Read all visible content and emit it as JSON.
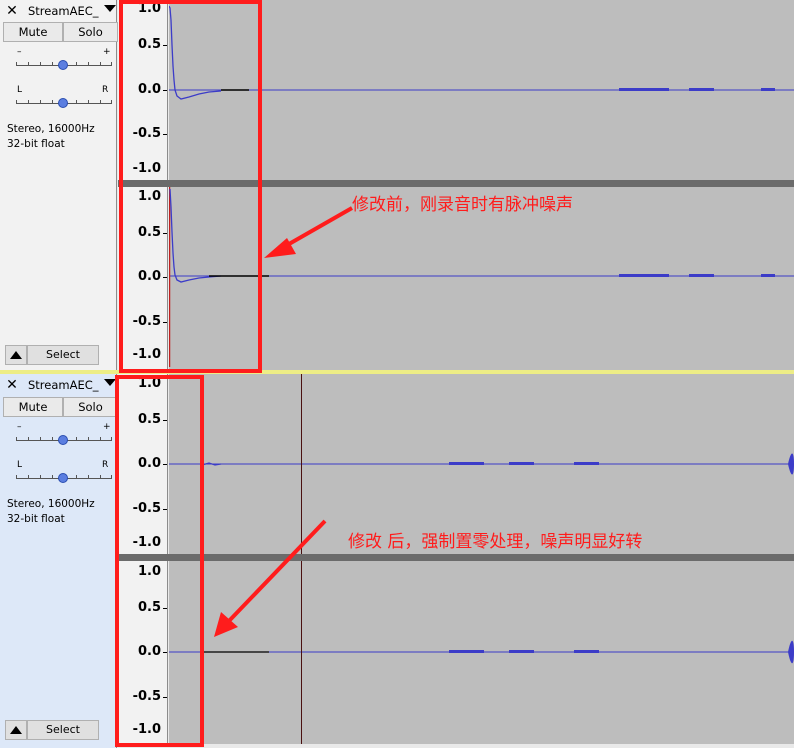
{
  "tracks": [
    {
      "name": "StreamAEC_",
      "mute_label": "Mute",
      "solo_label": "Solo",
      "gain_minus": "–",
      "gain_plus": "+",
      "pan_left": "L",
      "pan_right": "R",
      "info_rate": "Stereo, 16000Hz",
      "info_format": "32-bit float",
      "select_label": "Select",
      "ruler_labels": [
        "1.0",
        "0.5",
        "0.0",
        "-0.5",
        "-1.0"
      ]
    },
    {
      "name": "StreamAEC_",
      "mute_label": "Mute",
      "solo_label": "Solo",
      "gain_minus": "–",
      "gain_plus": "+",
      "pan_left": "L",
      "pan_right": "R",
      "info_rate": "Stereo, 16000Hz",
      "info_format": "32-bit float",
      "select_label": "Select",
      "ruler_labels": [
        "1.0",
        "0.5",
        "0.0",
        "-0.5",
        "-1.0"
      ]
    }
  ],
  "annotations": {
    "before": "修改前，刚录音时有脉冲噪声",
    "after": "修改 后，强制置零处理，噪声明显好转"
  },
  "colors": {
    "waveform": "#3c3cc8",
    "annotation": "#ff1c1c",
    "wave_background": "#bdbdbd"
  }
}
